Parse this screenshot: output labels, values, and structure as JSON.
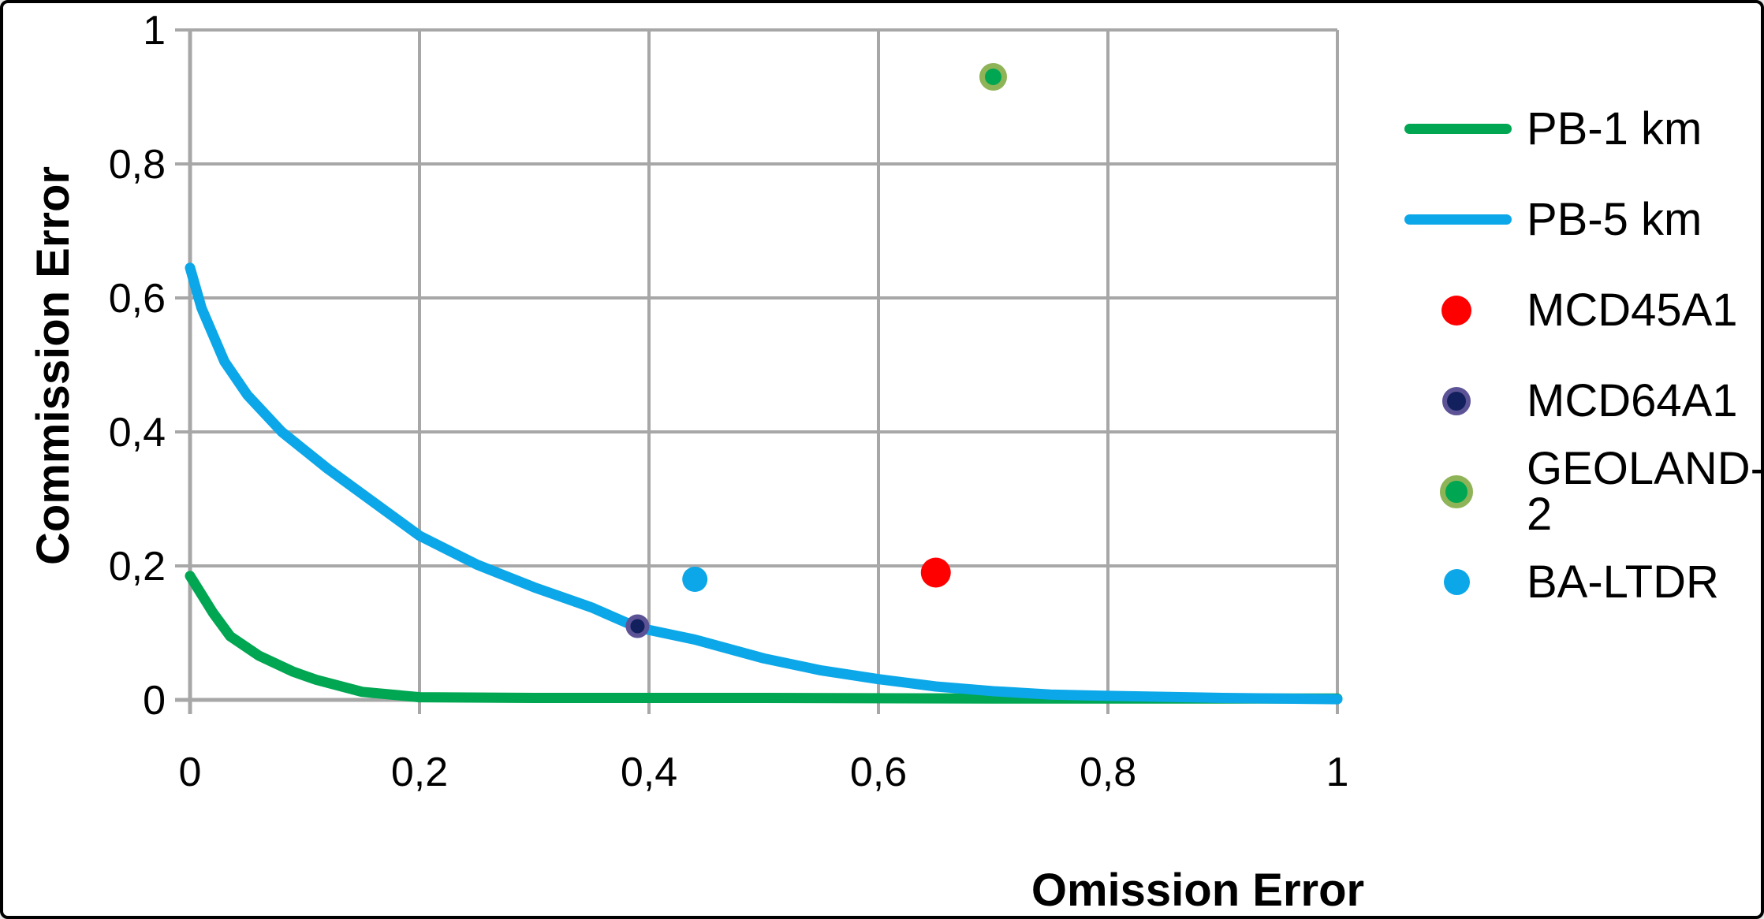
{
  "figure": {
    "background": "#FFFFFF",
    "border_color": "#000000",
    "grid_color": "#A7A7A7",
    "text_color": "#000000"
  },
  "axes": {
    "x_title": "Omission Error",
    "y_title": "Commission Error",
    "x_tick_labels": [
      "0",
      "0,2",
      "0,4",
      "0,6",
      "0,8",
      "1"
    ],
    "y_tick_labels": [
      "0",
      "0,2",
      "0,4",
      "0,6",
      "0,8",
      "1"
    ]
  },
  "chart_data": {
    "type": "line",
    "title": "",
    "xlabel": "Omission Error",
    "ylabel": "Commission Error",
    "xlim": [
      0,
      1
    ],
    "ylim": [
      0,
      1
    ],
    "x_ticks": [
      0,
      0.2,
      0.4,
      0.6,
      0.8,
      1
    ],
    "y_ticks": [
      0,
      0.2,
      0.4,
      0.6,
      0.8,
      1
    ],
    "tick_label_format": "decimal-comma",
    "grid": true,
    "legend_position": "right",
    "series": [
      {
        "name": "PB-1 km",
        "type": "line",
        "color": "#00A651",
        "line_width": 13,
        "points": [
          [
            0,
            0.185
          ],
          [
            0.02,
            0.13
          ],
          [
            0.035,
            0.095
          ],
          [
            0.06,
            0.066
          ],
          [
            0.09,
            0.042
          ],
          [
            0.11,
            0.03
          ],
          [
            0.15,
            0.012
          ],
          [
            0.2,
            0.004
          ],
          [
            0.3,
            0.003
          ],
          [
            0.5,
            0.003
          ],
          [
            0.7,
            0.002
          ],
          [
            1,
            0.002
          ]
        ]
      },
      {
        "name": "PB-5 km",
        "type": "line",
        "color": "#0BA7E8",
        "line_width": 13,
        "points": [
          [
            0,
            0.645
          ],
          [
            0.01,
            0.585
          ],
          [
            0.03,
            0.505
          ],
          [
            0.05,
            0.455
          ],
          [
            0.08,
            0.4
          ],
          [
            0.12,
            0.345
          ],
          [
            0.16,
            0.295
          ],
          [
            0.2,
            0.245
          ],
          [
            0.25,
            0.202
          ],
          [
            0.3,
            0.168
          ],
          [
            0.35,
            0.138
          ],
          [
            0.39,
            0.108
          ],
          [
            0.44,
            0.09
          ],
          [
            0.5,
            0.062
          ],
          [
            0.55,
            0.044
          ],
          [
            0.6,
            0.031
          ],
          [
            0.65,
            0.02
          ],
          [
            0.7,
            0.013
          ],
          [
            0.75,
            0.008
          ],
          [
            0.8,
            0.006
          ],
          [
            0.9,
            0.003
          ],
          [
            1,
            0.001
          ]
        ]
      },
      {
        "name": "MCD45A1",
        "type": "scatter",
        "color": "#FE0000",
        "ring_color": null,
        "marker_radius": 19,
        "ring_width": 0,
        "points": [
          [
            0.65,
            0.19
          ]
        ]
      },
      {
        "name": "MCD64A1",
        "type": "scatter",
        "color": "#13205E",
        "ring_color": "#5C5396",
        "marker_radius": 12,
        "ring_width": 6,
        "points": [
          [
            0.39,
            0.11
          ]
        ]
      },
      {
        "name": "GEOLAND-2",
        "type": "scatter",
        "color": "#00A651",
        "ring_color": "#8FB457",
        "marker_radius": 14,
        "ring_width": 7,
        "points": [
          [
            0.7,
            0.93
          ]
        ]
      },
      {
        "name": "BA-LTDR",
        "type": "scatter",
        "color": "#0BA7E8",
        "ring_color": null,
        "marker_radius": 16,
        "ring_width": 0,
        "points": [
          [
            0.44,
            0.18
          ]
        ]
      }
    ]
  }
}
